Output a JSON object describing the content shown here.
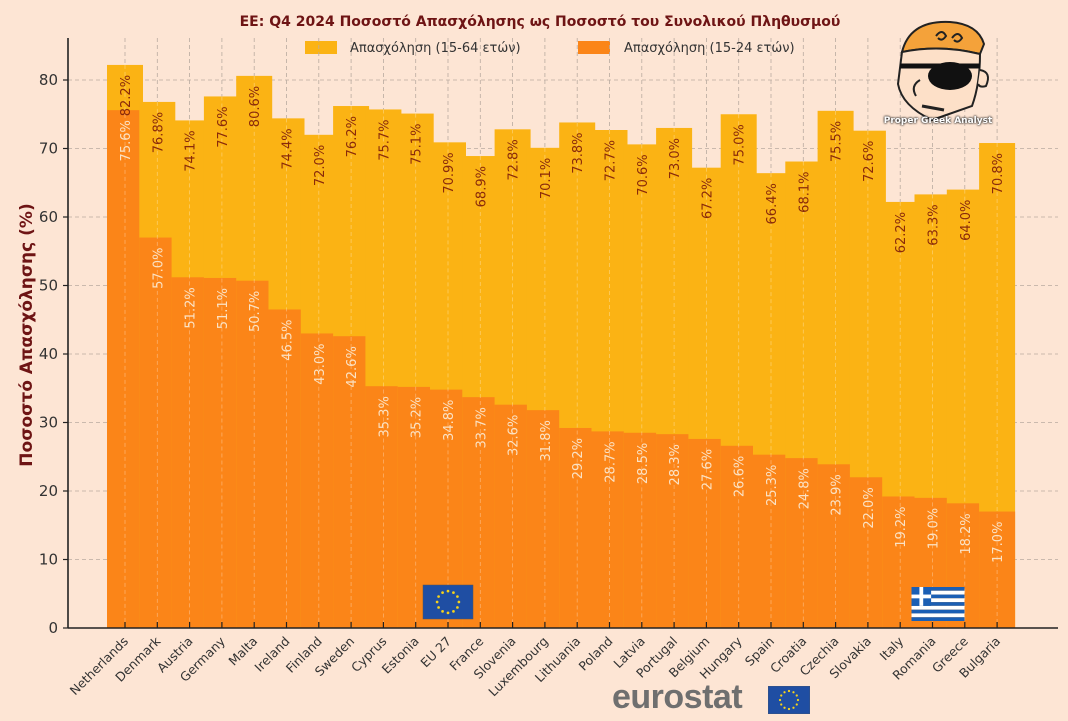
{
  "colors": {
    "background": "#fde5d4",
    "total": "#fbb314",
    "young": "#fb8518",
    "title": "#6e1414",
    "eu_flag": "#1f4ea3",
    "eu_star": "#f7d31a",
    "greece_blue": "#1b5fb4"
  },
  "logo": {
    "caption": "Proper Greek Analyst",
    "icon": "cartoon-character-sunglasses-icon"
  },
  "source": {
    "label": "eurostat",
    "icon": "eu-flag-icon"
  },
  "markers": [
    {
      "category": "EU 27",
      "icon": "eu-flag-icon"
    },
    {
      "category": "Romania",
      "icon": "greece-flag-icon"
    }
  ],
  "chart_data": {
    "type": "bar",
    "stacking": "overlay",
    "title": "ΕΕ: Q4 2024 Ποσοστό Απασχόλησης ως Ποσοστό του Συνολικού Πληθυσμού",
    "xlabel": "",
    "ylabel": "Ποσοστό Απασχόλησης (%)",
    "ylim": [
      0,
      85
    ],
    "yticks": [
      0,
      10,
      20,
      30,
      40,
      50,
      60,
      70,
      80
    ],
    "grid": true,
    "legend_position": "top-center",
    "categories": [
      "Netherlands",
      "Denmark",
      "Austria",
      "Germany",
      "Malta",
      "Ireland",
      "Finland",
      "Sweden",
      "Cyprus",
      "Estonia",
      "EU 27",
      "France",
      "Slovenia",
      "Luxembourg",
      "Lithuania",
      "Poland",
      "Latvia",
      "Portugal",
      "Belgium",
      "Hungary",
      "Spain",
      "Croatia",
      "Czechia",
      "Slovakia",
      "Italy",
      "Romania",
      "Greece",
      "Bulgaria"
    ],
    "series": [
      {
        "name": "Απασχόληση (15-64 ετών)",
        "color": "#fbb314",
        "values": [
          82.2,
          76.8,
          74.1,
          77.6,
          80.6,
          74.4,
          72.0,
          76.2,
          75.7,
          75.1,
          70.9,
          68.9,
          72.8,
          70.1,
          73.8,
          72.7,
          70.6,
          73.0,
          67.2,
          75.0,
          66.4,
          68.1,
          75.5,
          72.6,
          62.2,
          63.3,
          64.0,
          70.8
        ]
      },
      {
        "name": "Απασχόληση (15-24 ετών)",
        "color": "#fb8518",
        "values": [
          75.6,
          57.0,
          51.2,
          51.1,
          50.7,
          46.5,
          43.0,
          42.6,
          35.3,
          35.2,
          34.8,
          33.7,
          32.6,
          31.8,
          29.2,
          28.7,
          28.5,
          28.3,
          27.6,
          26.6,
          25.3,
          24.8,
          23.9,
          22.0,
          19.2,
          19.0,
          18.2,
          17.0
        ]
      }
    ],
    "label_format": "{v}%"
  }
}
